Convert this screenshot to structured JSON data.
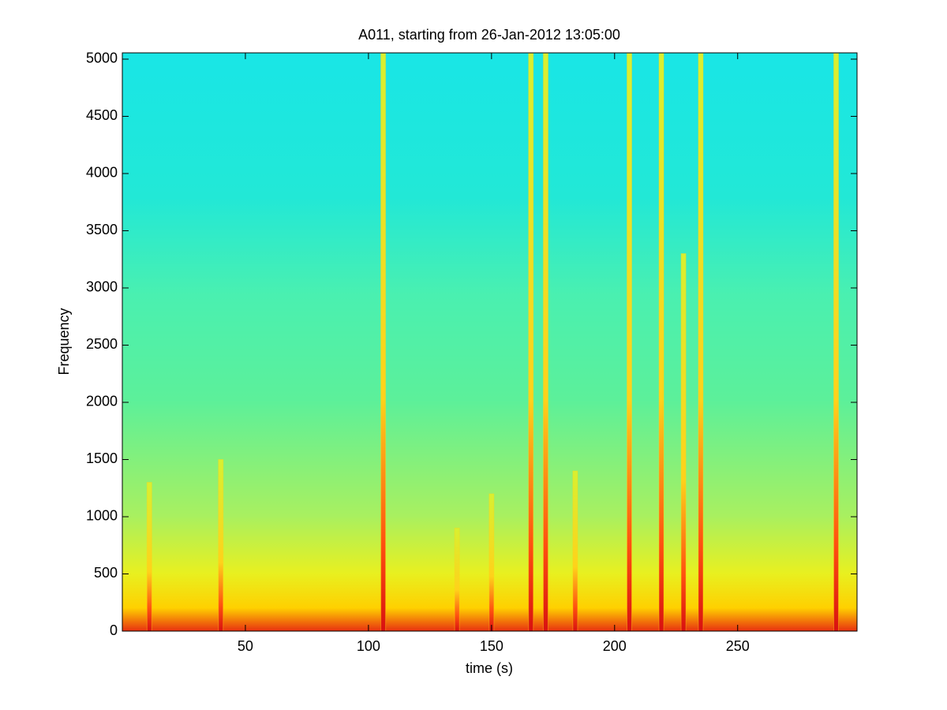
{
  "chart_data": {
    "type": "spectrogram",
    "title": "A011, starting from 26-Jan-2012 13:05:00",
    "x_label": "time (s)",
    "y_label": "Frequency",
    "x": [
      11,
      40,
      106,
      136,
      150,
      166,
      172,
      184,
      206,
      219,
      228,
      235,
      290
    ],
    "values": [
      1300,
      1500,
      5050,
      900,
      1200,
      5050,
      5050,
      1400,
      5050,
      5050,
      3300,
      5050,
      5050
    ],
    "color": "#ffd21a",
    "xlim": [
      0,
      298.5
    ],
    "ylim": [
      0,
      5055
    ],
    "xticks": [
      50,
      100,
      150,
      200,
      250
    ],
    "yticks": [
      0,
      500,
      1000,
      1500,
      2000,
      2500,
      3000,
      3500,
      4000,
      4500,
      5000
    ]
  }
}
